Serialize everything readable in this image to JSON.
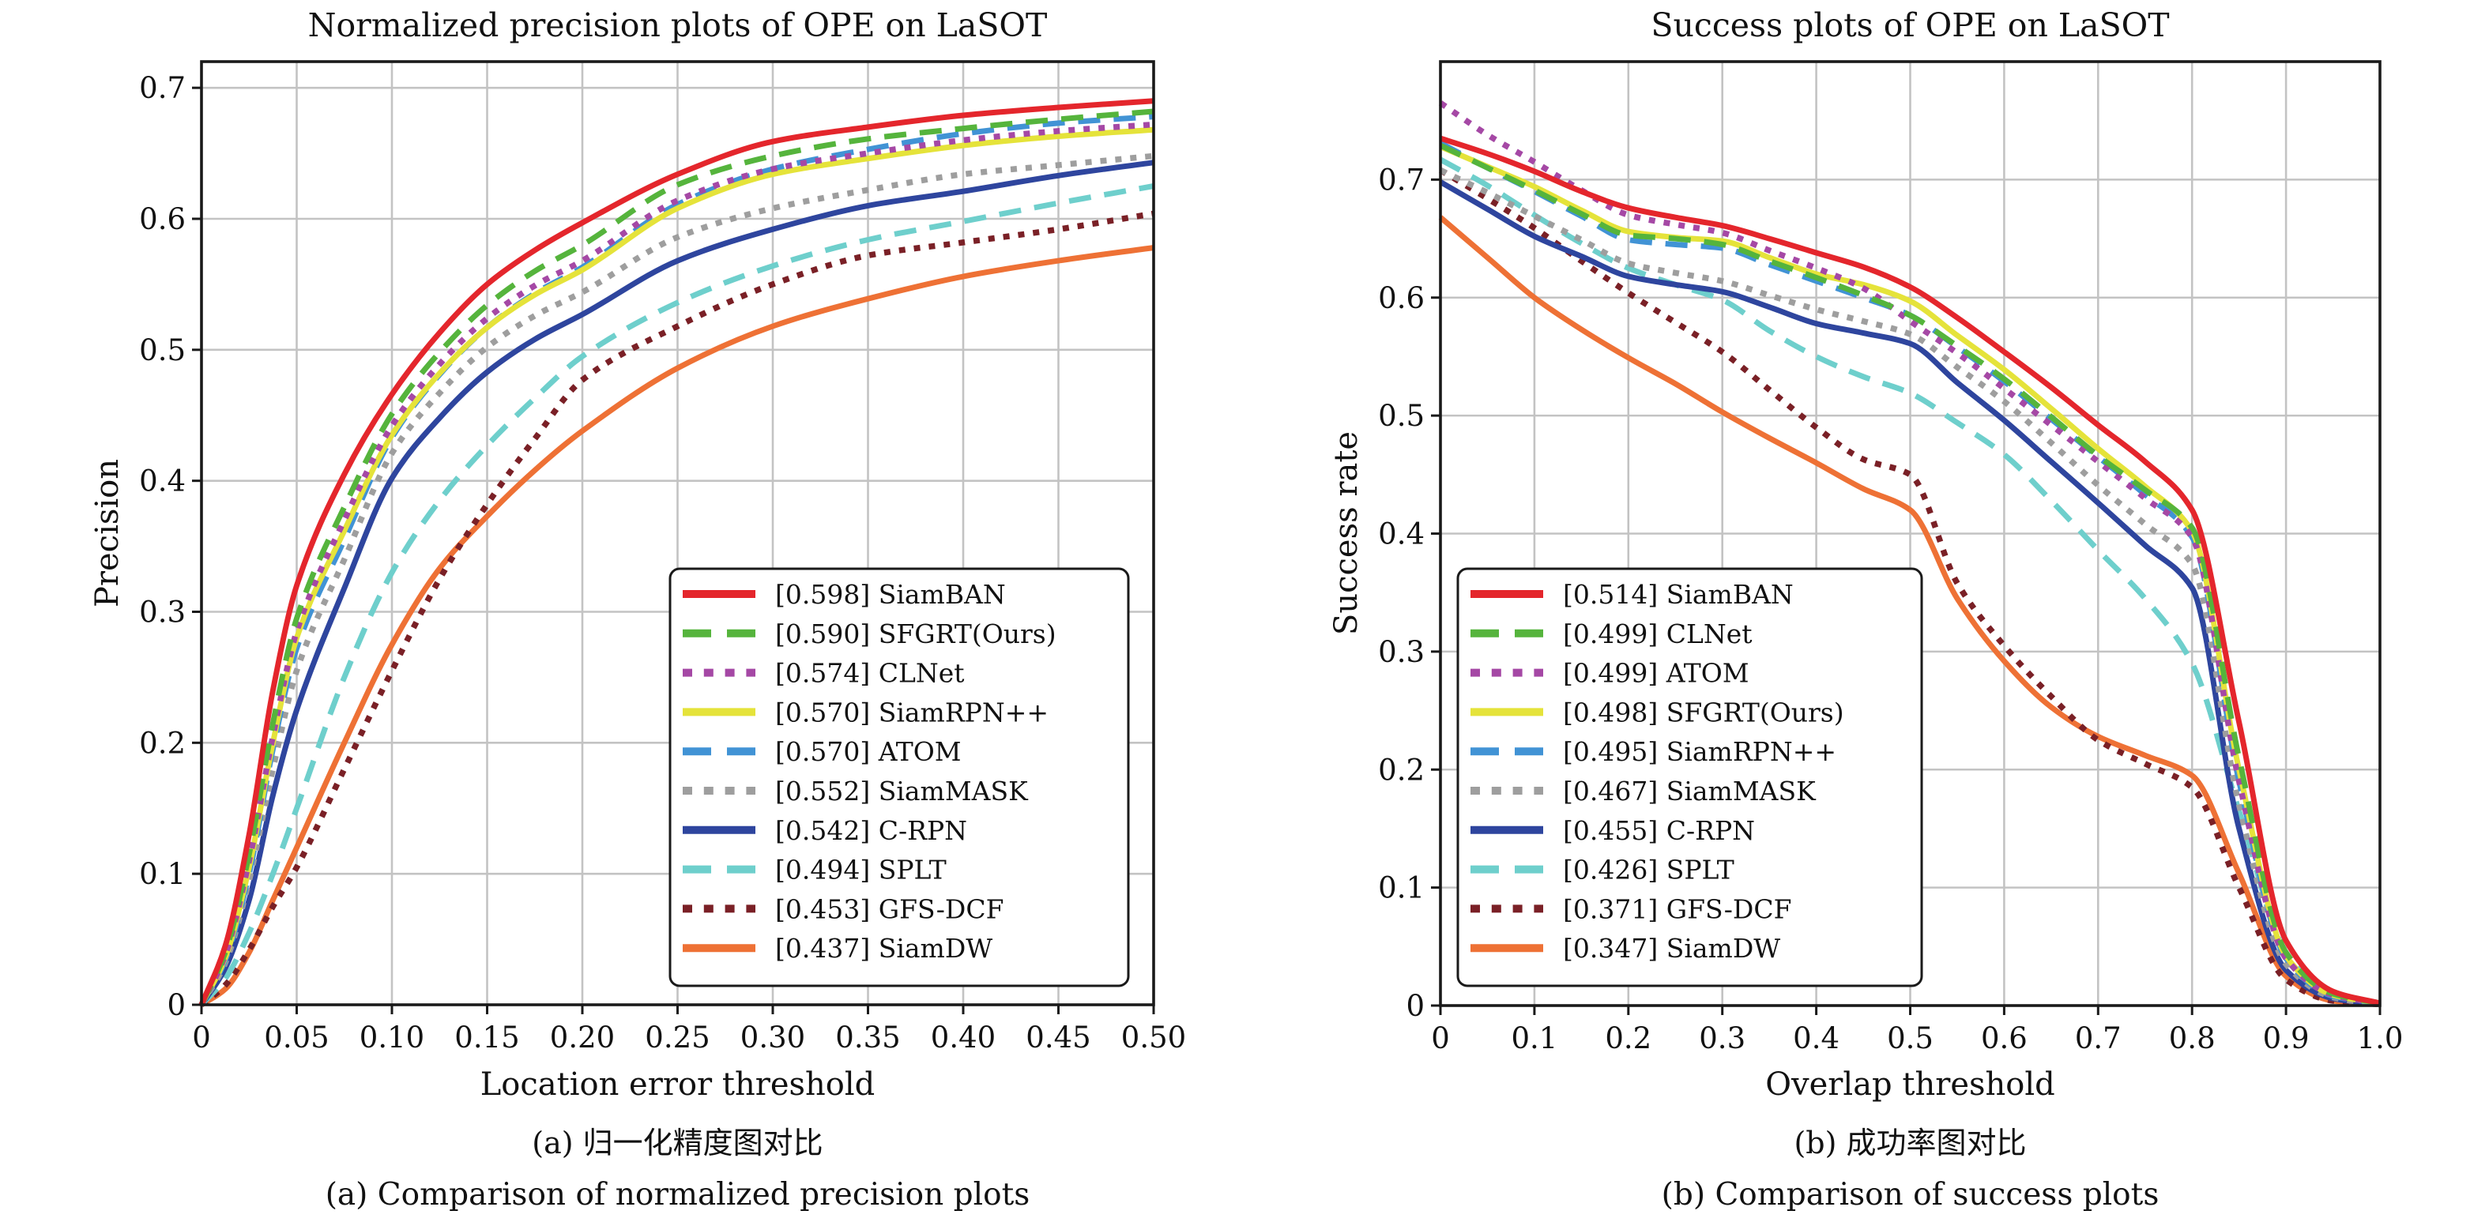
{
  "figure": {
    "background": "#ffffff",
    "frame_color": "#1a1a1a",
    "grid_color": "#c3c3c3",
    "text_color": "#111111"
  },
  "chart_data": [
    {
      "type": "line",
      "id": "normalized-precision-plot",
      "title": "Normalized precision plots of OPE on LaSOT",
      "xlabel": "Location error threshold",
      "ylabel": "Precision",
      "caption_zh": "(a) 归一化精度图对比",
      "caption_en": "(a) Comparison of normalized precision plots",
      "grid": true,
      "legend_position": "lower-right-inside",
      "xlim": [
        0,
        0.5
      ],
      "ylim": [
        0,
        0.72
      ],
      "xticks": [
        0,
        0.05,
        0.1,
        0.15,
        0.2,
        0.25,
        0.3,
        0.35,
        0.4,
        0.45,
        0.5
      ],
      "xtick_labels": [
        "0",
        "0.05",
        "0.10",
        "0.15",
        "0.20",
        "0.25",
        "0.30",
        "0.35",
        "0.40",
        "0.45",
        "0.50"
      ],
      "yticks": [
        0,
        0.1,
        0.2,
        0.3,
        0.4,
        0.5,
        0.6,
        0.7
      ],
      "ytick_labels": [
        "0",
        "0.1",
        "0.2",
        "0.3",
        "0.4",
        "0.5",
        "0.6",
        "0.7"
      ],
      "x": [
        0,
        0.0125,
        0.025,
        0.0375,
        0.05,
        0.075,
        0.1,
        0.125,
        0.15,
        0.175,
        0.2,
        0.25,
        0.3,
        0.35,
        0.4,
        0.45,
        0.5
      ],
      "series": [
        {
          "name": "SiamBAN",
          "score": "0.598",
          "color": "#e4262c",
          "style": "solid",
          "values": [
            0,
            0.045,
            0.13,
            0.24,
            0.32,
            0.405,
            0.466,
            0.513,
            0.55,
            0.576,
            0.597,
            0.634,
            0.659,
            0.67,
            0.679,
            0.685,
            0.69
          ]
        },
        {
          "name": "SFGRT(Ours)",
          "score": "0.590",
          "color": "#55b43c",
          "style": "dashed",
          "values": [
            0,
            0.04,
            0.115,
            0.215,
            0.295,
            0.38,
            0.451,
            0.498,
            0.534,
            0.56,
            0.58,
            0.626,
            0.648,
            0.661,
            0.669,
            0.676,
            0.682
          ]
        },
        {
          "name": "CLNet",
          "score": "0.574",
          "color": "#a548a5",
          "style": "dotted",
          "values": [
            0,
            0.038,
            0.11,
            0.205,
            0.285,
            0.37,
            0.442,
            0.489,
            0.524,
            0.549,
            0.568,
            0.614,
            0.638,
            0.65,
            0.66,
            0.667,
            0.672
          ]
        },
        {
          "name": "SiamRPN++",
          "score": "0.570",
          "color": "#e5e33a",
          "style": "solid",
          "values": [
            0,
            0.036,
            0.105,
            0.2,
            0.28,
            0.362,
            0.435,
            0.482,
            0.517,
            0.542,
            0.561,
            0.608,
            0.634,
            0.646,
            0.656,
            0.663,
            0.668
          ]
        },
        {
          "name": "ATOM",
          "score": "0.570",
          "color": "#4193d5",
          "style": "dashed",
          "values": [
            0,
            0.034,
            0.1,
            0.195,
            0.272,
            0.355,
            0.433,
            0.481,
            0.517,
            0.543,
            0.563,
            0.611,
            0.638,
            0.653,
            0.665,
            0.673,
            0.678
          ]
        },
        {
          "name": "SiamMASK",
          "score": "0.552",
          "color": "#9e9e9e",
          "style": "dotted",
          "values": [
            0,
            0.032,
            0.095,
            0.18,
            0.255,
            0.34,
            0.421,
            0.467,
            0.502,
            0.526,
            0.544,
            0.586,
            0.608,
            0.622,
            0.634,
            0.641,
            0.648
          ]
        },
        {
          "name": "C-RPN",
          "score": "0.542",
          "color": "#2e459e",
          "style": "solid",
          "values": [
            0,
            0.028,
            0.08,
            0.16,
            0.225,
            0.318,
            0.402,
            0.448,
            0.483,
            0.508,
            0.527,
            0.568,
            0.592,
            0.61,
            0.621,
            0.633,
            0.643
          ]
        },
        {
          "name": "SPLT",
          "score": "0.494",
          "color": "#6ecfcc",
          "style": "dashed",
          "values": [
            0,
            0.02,
            0.055,
            0.1,
            0.15,
            0.25,
            0.33,
            0.385,
            0.427,
            0.463,
            0.495,
            0.536,
            0.564,
            0.584,
            0.598,
            0.612,
            0.625
          ]
        },
        {
          "name": "GFS-DCF",
          "score": "0.453",
          "color": "#7a2026",
          "style": "dotted",
          "values": [
            0,
            0.015,
            0.042,
            0.075,
            0.105,
            0.18,
            0.255,
            0.325,
            0.382,
            0.432,
            0.477,
            0.518,
            0.55,
            0.572,
            0.582,
            0.592,
            0.604
          ]
        },
        {
          "name": "SiamDW",
          "score": "0.437",
          "color": "#ee7135",
          "style": "solid",
          "values": [
            0,
            0.012,
            0.04,
            0.08,
            0.12,
            0.2,
            0.275,
            0.333,
            0.373,
            0.408,
            0.438,
            0.486,
            0.518,
            0.539,
            0.556,
            0.568,
            0.578
          ]
        }
      ]
    },
    {
      "type": "line",
      "id": "success-plot",
      "title": "Success plots of OPE on LaSOT",
      "xlabel": "Overlap threshold",
      "ylabel": "Success rate",
      "caption_zh": "(b) 成功率图对比",
      "caption_en": "(b) Comparison of success plots",
      "grid": true,
      "legend_position": "lower-left-inside",
      "xlim": [
        0,
        1.0
      ],
      "ylim": [
        0,
        0.8
      ],
      "xticks": [
        0,
        0.1,
        0.2,
        0.3,
        0.4,
        0.5,
        0.6,
        0.7,
        0.8,
        0.9,
        1.0
      ],
      "xtick_labels": [
        "0",
        "0.1",
        "0.2",
        "0.3",
        "0.4",
        "0.5",
        "0.6",
        "0.7",
        "0.8",
        "0.9",
        "1.0"
      ],
      "yticks": [
        0,
        0.1,
        0.2,
        0.3,
        0.4,
        0.5,
        0.6,
        0.7
      ],
      "ytick_labels": [
        "0",
        "0.1",
        "0.2",
        "0.3",
        "0.4",
        "0.5",
        "0.6",
        "0.7"
      ],
      "x": [
        0,
        0.05,
        0.1,
        0.15,
        0.2,
        0.25,
        0.3,
        0.35,
        0.4,
        0.45,
        0.5,
        0.55,
        0.6,
        0.65,
        0.7,
        0.75,
        0.8,
        0.85,
        0.9,
        0.95,
        1.0
      ],
      "series": [
        {
          "name": "SiamBAN",
          "score": "0.514",
          "color": "#e4262c",
          "style": "solid",
          "values": [
            0.735,
            0.722,
            0.707,
            0.69,
            0.676,
            0.668,
            0.661,
            0.65,
            0.638,
            0.626,
            0.609,
            0.583,
            0.554,
            0.524,
            0.492,
            0.461,
            0.42,
            0.24,
            0.055,
            0.012,
            0.002
          ]
        },
        {
          "name": "CLNet",
          "score": "0.499",
          "color": "#55b43c",
          "style": "dashed",
          "values": [
            0.729,
            0.71,
            0.691,
            0.671,
            0.653,
            0.65,
            0.645,
            0.631,
            0.617,
            0.602,
            0.585,
            0.559,
            0.531,
            0.499,
            0.466,
            0.437,
            0.405,
            0.21,
            0.045,
            0.01,
            0.002
          ]
        },
        {
          "name": "ATOM",
          "score": "0.499",
          "color": "#a548a5",
          "style": "dotted",
          "values": [
            0.765,
            0.738,
            0.715,
            0.691,
            0.67,
            0.662,
            0.655,
            0.64,
            0.625,
            0.608,
            0.58,
            0.553,
            0.523,
            0.492,
            0.461,
            0.43,
            0.397,
            0.19,
            0.04,
            0.009,
            0.002
          ]
        },
        {
          "name": "SFGRT(Ours)",
          "score": "0.498",
          "color": "#e5e33a",
          "style": "solid",
          "values": [
            0.728,
            0.711,
            0.694,
            0.674,
            0.656,
            0.651,
            0.648,
            0.634,
            0.62,
            0.611,
            0.597,
            0.568,
            0.539,
            0.506,
            0.472,
            0.44,
            0.402,
            0.2,
            0.042,
            0.009,
            0.002
          ]
        },
        {
          "name": "SiamRPN++",
          "score": "0.495",
          "color": "#4193d5",
          "style": "dashed",
          "values": [
            0.731,
            0.71,
            0.69,
            0.669,
            0.649,
            0.645,
            0.642,
            0.628,
            0.614,
            0.6,
            0.585,
            0.558,
            0.529,
            0.497,
            0.465,
            0.433,
            0.397,
            0.19,
            0.04,
            0.008,
            0.002
          ]
        },
        {
          "name": "SiamMASK",
          "score": "0.467",
          "color": "#9e9e9e",
          "style": "dotted",
          "values": [
            0.708,
            0.689,
            0.669,
            0.649,
            0.629,
            0.621,
            0.614,
            0.602,
            0.59,
            0.58,
            0.569,
            0.541,
            0.512,
            0.477,
            0.441,
            0.408,
            0.374,
            0.17,
            0.035,
            0.007,
            0.001
          ]
        },
        {
          "name": "C-RPN",
          "score": "0.455",
          "color": "#2e459e",
          "style": "solid",
          "values": [
            0.698,
            0.675,
            0.652,
            0.635,
            0.618,
            0.611,
            0.605,
            0.592,
            0.578,
            0.57,
            0.561,
            0.528,
            0.496,
            0.461,
            0.426,
            0.39,
            0.354,
            0.15,
            0.03,
            0.006,
            0.001
          ]
        },
        {
          "name": "SPLT",
          "score": "0.426",
          "color": "#6ecfcc",
          "style": "dashed",
          "values": [
            0.717,
            0.695,
            0.67,
            0.646,
            0.625,
            0.611,
            0.598,
            0.572,
            0.55,
            0.533,
            0.519,
            0.494,
            0.467,
            0.428,
            0.386,
            0.345,
            0.29,
            0.165,
            0.045,
            0.008,
            0.001
          ]
        },
        {
          "name": "GFS-DCF",
          "score": "0.371",
          "color": "#7a2026",
          "style": "dotted",
          "values": [
            0.708,
            0.684,
            0.659,
            0.631,
            0.604,
            0.579,
            0.554,
            0.522,
            0.49,
            0.463,
            0.45,
            0.358,
            0.305,
            0.262,
            0.225,
            0.205,
            0.185,
            0.1,
            0.022,
            0.004,
            0.001
          ]
        },
        {
          "name": "SiamDW",
          "score": "0.347",
          "color": "#ee7135",
          "style": "solid",
          "values": [
            0.668,
            0.634,
            0.6,
            0.573,
            0.549,
            0.527,
            0.503,
            0.481,
            0.46,
            0.438,
            0.42,
            0.345,
            0.292,
            0.253,
            0.228,
            0.212,
            0.195,
            0.112,
            0.025,
            0.004,
            0.001
          ]
        }
      ]
    }
  ]
}
